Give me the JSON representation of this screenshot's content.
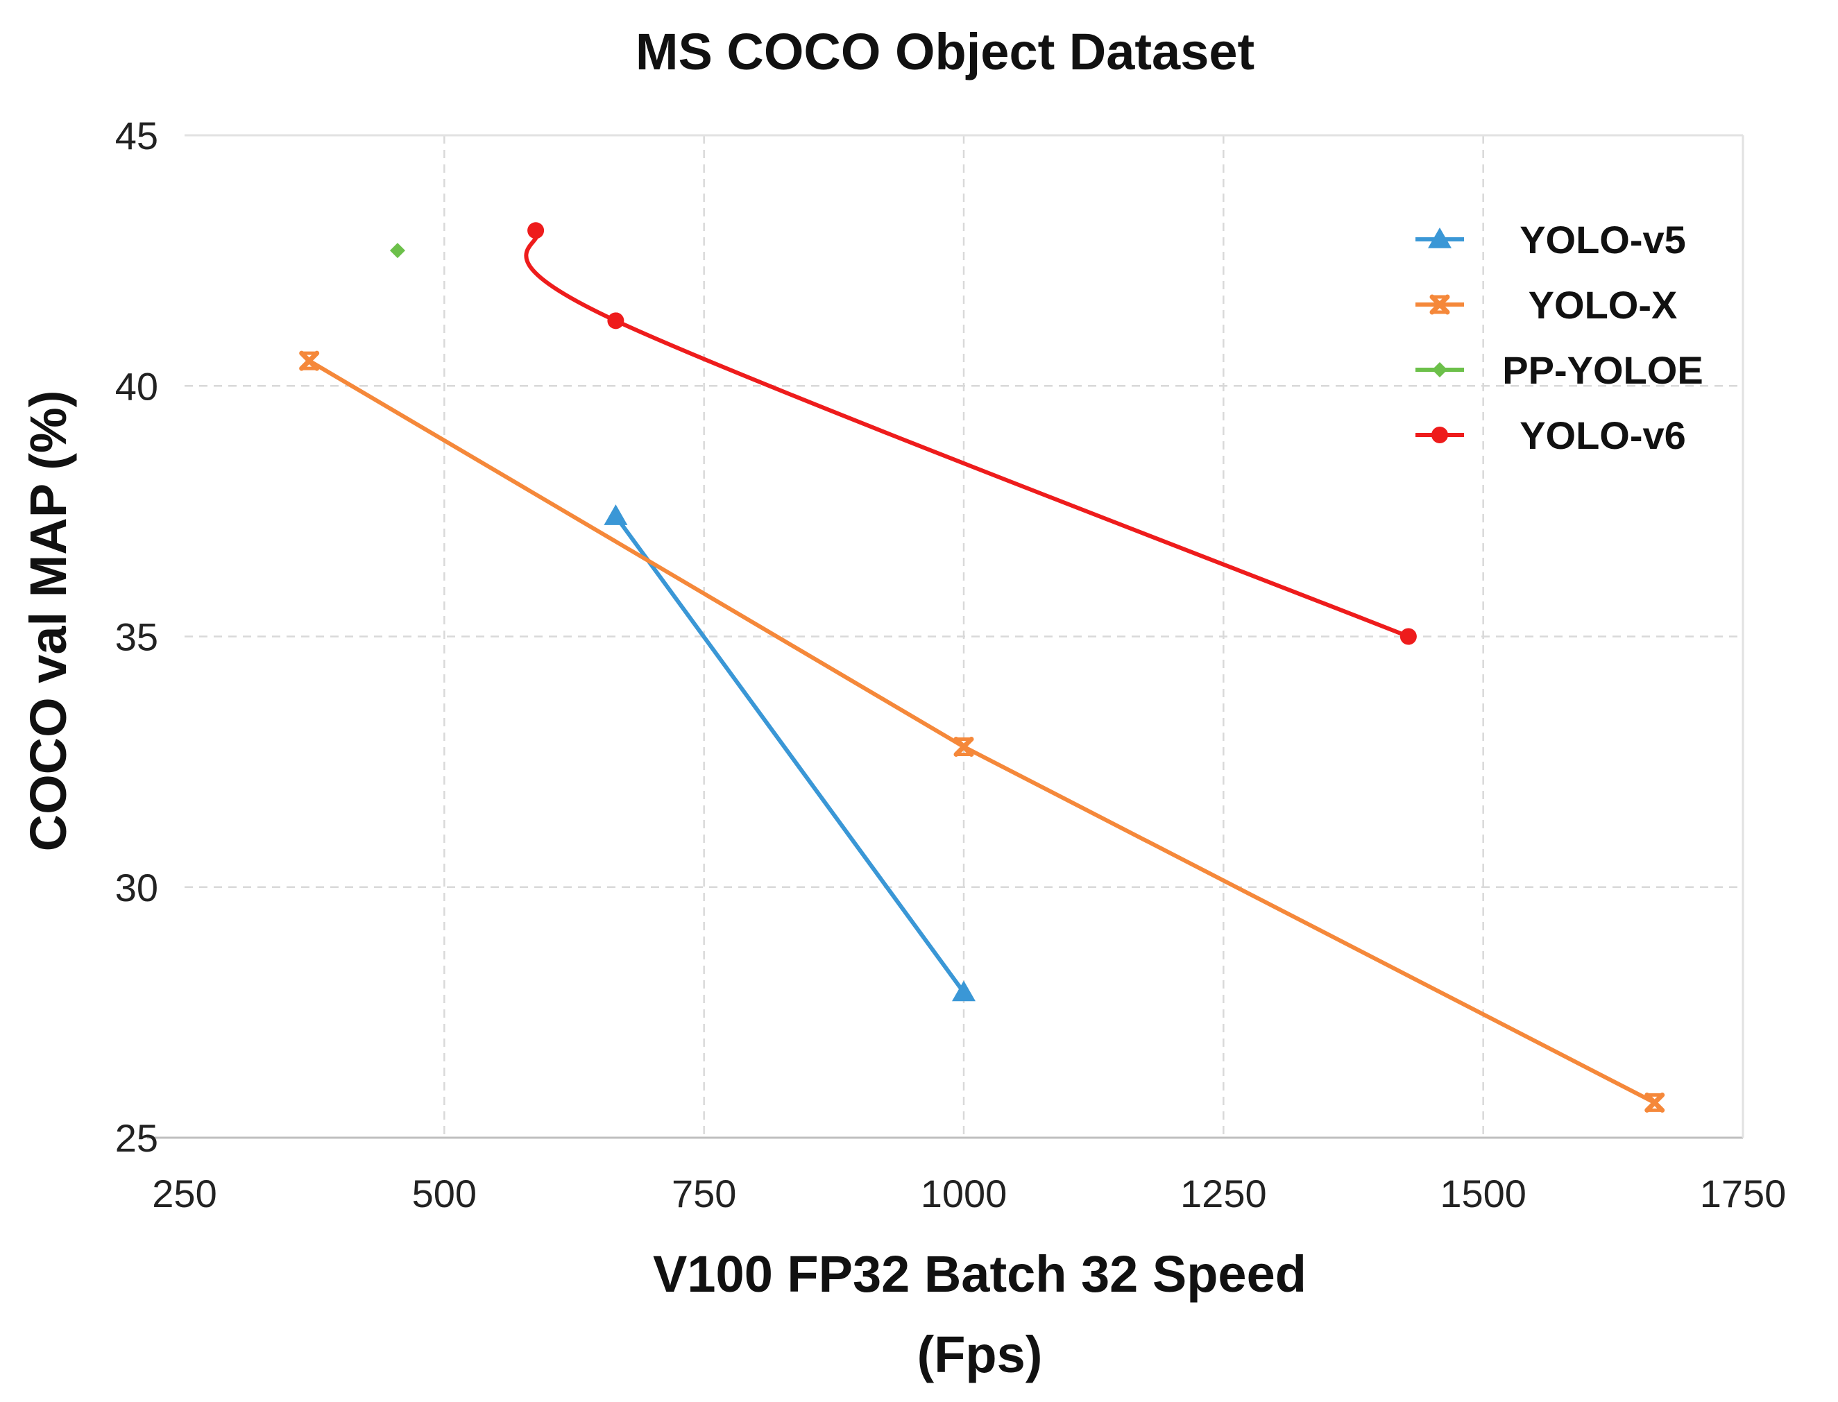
{
  "chart_data": {
    "type": "line",
    "title": "MS COCO Object Dataset",
    "xlabel": [
      "V100 FP32 Batch 32 Speed",
      "(Fps)"
    ],
    "ylabel": "COCO val MAP (%)",
    "xlim": [
      250,
      1750
    ],
    "ylim": [
      25,
      45
    ],
    "xticks": [
      250,
      500,
      750,
      1000,
      1250,
      1500,
      1750
    ],
    "yticks": [
      25,
      30,
      35,
      40,
      45
    ],
    "grid": true,
    "legend_position": "top-right",
    "series": [
      {
        "name": "YOLO-v5",
        "color": "#3a97d6",
        "marker": "triangle",
        "smooth": false,
        "x": [
          665,
          1000
        ],
        "y": [
          37.4,
          27.9
        ]
      },
      {
        "name": "YOLO-X",
        "color": "#f5883a",
        "marker": "x",
        "smooth": false,
        "x": [
          370,
          1000,
          1665
        ],
        "y": [
          40.5,
          32.8,
          25.7
        ]
      },
      {
        "name": "PP-YOLOE",
        "color": "#6cc04a",
        "marker": "diamond",
        "smooth": false,
        "x": [
          455
        ],
        "y": [
          42.7
        ]
      },
      {
        "name": "YOLO-v6",
        "color": "#ee1c1c",
        "marker": "circle",
        "smooth": true,
        "x": [
          588,
          665,
          1428
        ],
        "y": [
          43.1,
          41.3,
          35.0
        ]
      }
    ]
  }
}
